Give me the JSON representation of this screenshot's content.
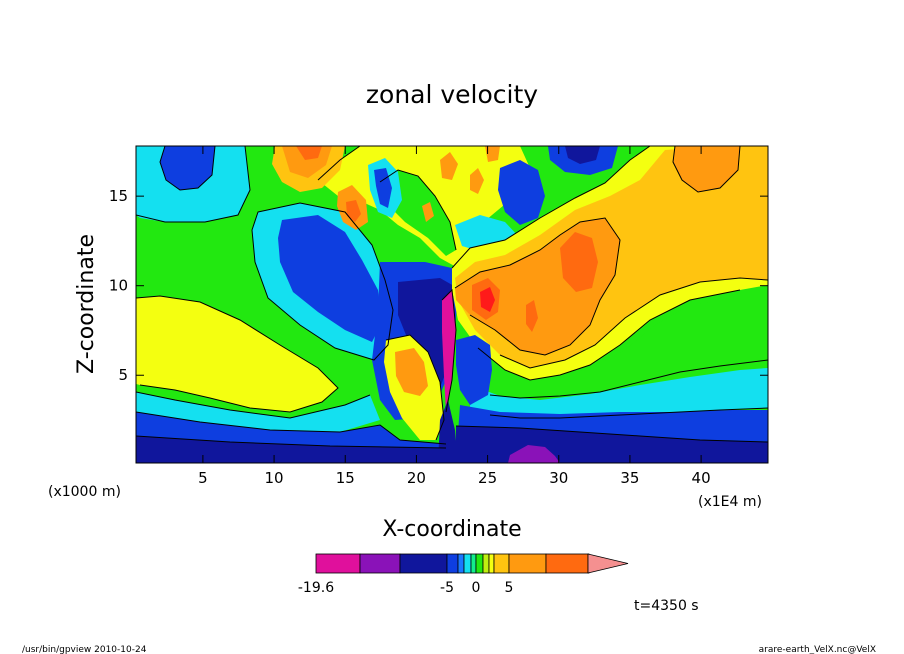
{
  "chart_data": {
    "type": "heatmap",
    "title": "zonal velocity",
    "xlabel": "X-coordinate",
    "ylabel": "Z-coordinate",
    "x_unit_note": "(x1E4 m)",
    "y_unit_note": "(x1000 m)",
    "xlim": [
      0.3,
      44.7
    ],
    "ylim": [
      0.1,
      17.8
    ],
    "x_ticks": [
      5,
      10,
      15,
      20,
      25,
      30,
      35,
      40
    ],
    "y_ticks": [
      5,
      10,
      15
    ],
    "x_tick_labels": [
      "5",
      "10",
      "15",
      "20",
      "25",
      "30",
      "35",
      "40"
    ],
    "y_tick_labels": [
      "5",
      "10",
      "15"
    ],
    "grid": false,
    "colorbar": {
      "orientation": "horizontal",
      "extend": "max",
      "levels": [
        -19.6,
        -15,
        -10,
        -5,
        -3,
        -2,
        -1,
        0,
        1,
        2,
        3,
        5,
        8,
        11
      ],
      "tick_labels": [
        "-19.6",
        "-5",
        "0",
        "5"
      ],
      "tick_values": [
        -19.6,
        -5,
        0,
        5
      ],
      "colors": [
        "#e0109c",
        "#8a12b8",
        "#10169c",
        "#0e3ee0",
        "#1a78ff",
        "#14e0f0",
        "#12ee8c",
        "#22e810",
        "#bfef10",
        "#f4ff10",
        "#ffc410",
        "#ff9a10",
        "#ff6a10",
        "#ff1a1a"
      ],
      "extend_color": "#f59090"
    },
    "features": [
      {
        "name": "surface easterly layer",
        "x_range": [
          0.3,
          44.7
        ],
        "z_range": [
          0.1,
          3.0
        ],
        "value": -8
      },
      {
        "name": "downslope jet",
        "x_range": [
          22.0,
          23.0
        ],
        "z_range": [
          1.0,
          10.5
        ],
        "value": -10
      },
      {
        "name": "lee-side westerly maximum",
        "x": 25.3,
        "z": 9.3,
        "value": 8
      },
      {
        "name": "upper westerly maximum",
        "x": 33.0,
        "z": 11.5,
        "value": 6
      },
      {
        "name": "upstream westerly tongue",
        "x": 5.0,
        "z": 7.0,
        "value": 2
      },
      {
        "name": "upper-left easterly cell",
        "x": 5.0,
        "z": 16.5,
        "value": -5
      }
    ]
  },
  "annotations": {
    "time": "t=4350 s",
    "footer_left": "/usr/bin/gpview   2010-10-24",
    "footer_right": "arare-earth_VelX.nc@VelX"
  }
}
